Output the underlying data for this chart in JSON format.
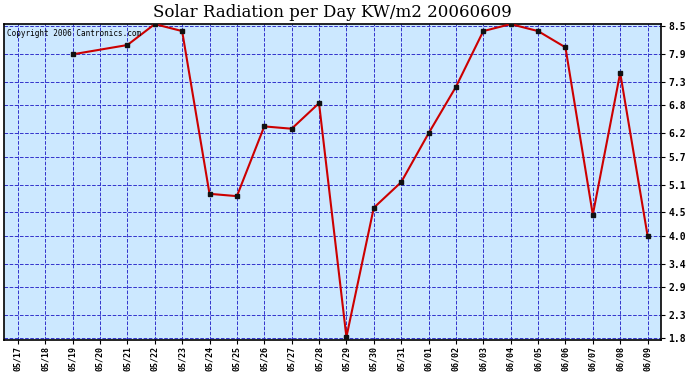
{
  "title": "Solar Radiation per Day KW/m2 20060609",
  "copyright_text": "Copyright 2006 Cantronics.com",
  "x_labels": [
    "05/17",
    "05/18",
    "05/19",
    "05/20",
    "05/21",
    "05/22",
    "05/23",
    "05/24",
    "05/25",
    "05/26",
    "05/27",
    "05/28",
    "05/29",
    "05/30",
    "05/31",
    "06/01",
    "06/02",
    "06/03",
    "06/04",
    "06/05",
    "06/06",
    "06/07",
    "06/08",
    "06/09"
  ],
  "y_values": [
    null,
    null,
    7.9,
    null,
    8.1,
    8.55,
    8.4,
    4.9,
    4.85,
    6.35,
    6.3,
    6.85,
    1.82,
    4.6,
    5.15,
    6.2,
    7.2,
    8.4,
    8.55,
    8.4,
    8.05,
    4.45,
    7.5,
    4.0
  ],
  "line_color": "#cc0000",
  "marker_color": "#111111",
  "bg_color": "#ffffff",
  "plot_bg_color": "#cce8ff",
  "grid_color": "#3333cc",
  "title_color": "#000000",
  "y_ticks": [
    1.8,
    2.3,
    2.9,
    3.4,
    4.0,
    4.5,
    5.1,
    5.7,
    6.2,
    6.8,
    7.3,
    7.9,
    8.5
  ],
  "y_min": 1.8,
  "y_max": 8.5,
  "copyright_color": "#000000"
}
